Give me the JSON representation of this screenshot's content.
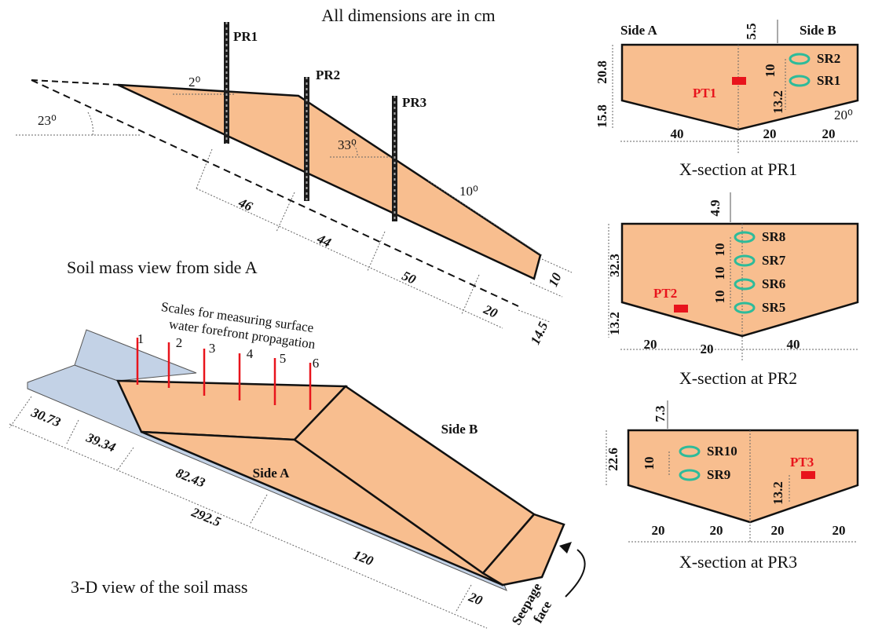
{
  "header": {
    "note": "All dimensions are in cm"
  },
  "side_view": {
    "caption": "Soil mass view from side A",
    "probes": [
      "PR1",
      "PR2",
      "PR3"
    ],
    "angles": [
      "2⁰",
      "23⁰",
      "33⁰",
      "10⁰"
    ],
    "dimensions": [
      "46",
      "44",
      "50",
      "20",
      "10",
      "14.5"
    ]
  },
  "view_3d": {
    "caption": "3-D view of the soil mass",
    "scales_note": [
      "Scales for measuring surface",
      "water forefront propagation"
    ],
    "scale_labels": [
      "1",
      "2",
      "3",
      "4",
      "5",
      "6"
    ],
    "side_a": "Side A",
    "side_b": "Side B",
    "seepage": [
      "Seepage",
      "face"
    ],
    "dimensions": [
      "30.73",
      "39.34",
      "82.43",
      "292.5",
      "120",
      "20"
    ]
  },
  "sections": [
    {
      "caption": "X-section at PR1",
      "side_a": "Side A",
      "side_b": "Side B",
      "sensors": [
        "SR2",
        "SR1"
      ],
      "transducer": "PT1",
      "angle": "20⁰",
      "dimensions": [
        "5.5",
        "20.8",
        "15.8",
        "10",
        "13.2",
        "40",
        "20",
        "20"
      ]
    },
    {
      "caption": "X-section at PR2",
      "sensors": [
        "SR8",
        "SR7",
        "SR6",
        "SR5"
      ],
      "transducer": "PT2",
      "dimensions": [
        "4.9",
        "32.3",
        "13.2",
        "10",
        "10",
        "10",
        "20",
        "20",
        "40"
      ]
    },
    {
      "caption": "X-section at PR3",
      "sensors": [
        "SR10",
        "SR9"
      ],
      "transducer": "PT3",
      "dimensions": [
        "7.3",
        "22.6",
        "10",
        "13.2",
        "20",
        "20",
        "20",
        "20"
      ]
    }
  ]
}
